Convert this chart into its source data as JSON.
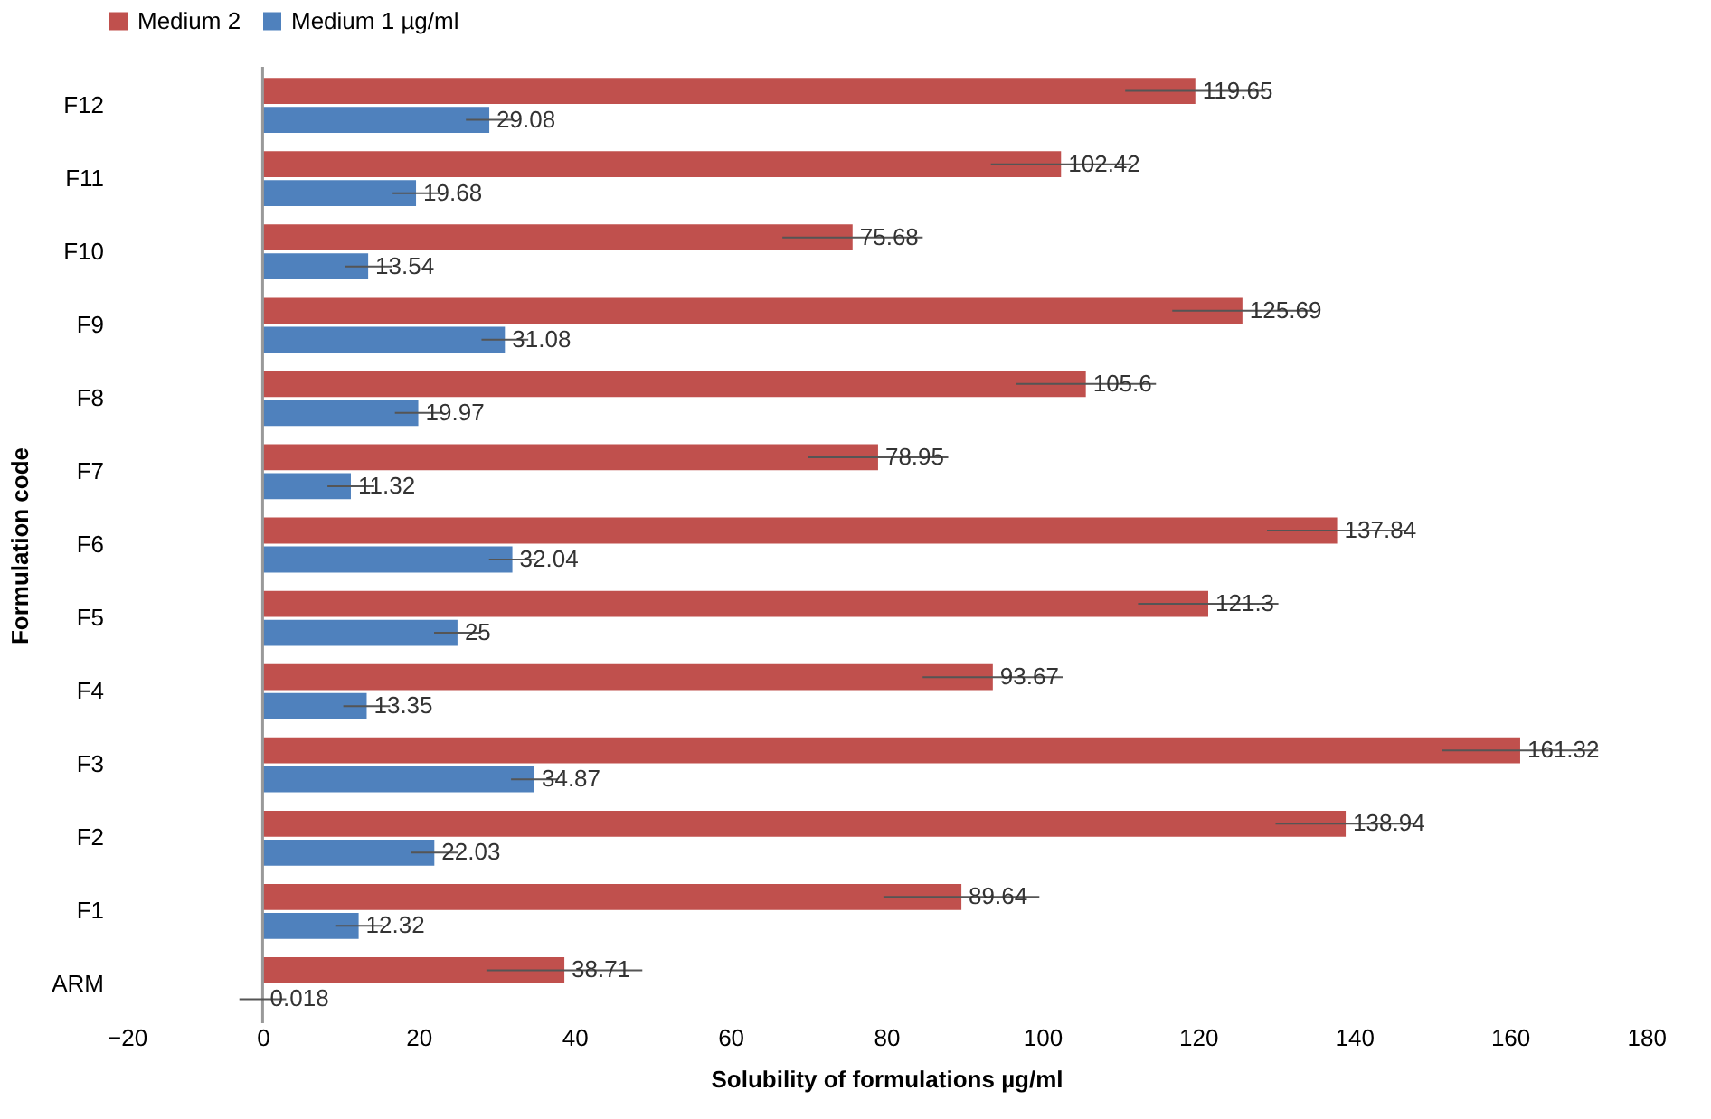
{
  "chart_data": {
    "type": "bar",
    "orientation": "horizontal",
    "xlabel": "Solubility of formulations µg/ml",
    "ylabel": "Formulation code",
    "categories": [
      "F12",
      "F11",
      "F10",
      "F9",
      "F8",
      "F7",
      "F6",
      "F5",
      "F4",
      "F3",
      "F2",
      "F1",
      "ARM"
    ],
    "series": [
      {
        "name": "Medium 2",
        "color": "#c0504d",
        "values": [
          119.65,
          102.42,
          75.68,
          125.69,
          105.6,
          78.95,
          137.84,
          121.3,
          93.67,
          161.32,
          138.94,
          89.64,
          38.71
        ],
        "errors": [
          9,
          9,
          9,
          9,
          9,
          9,
          9,
          9,
          9,
          10,
          9,
          10,
          10
        ]
      },
      {
        "name": "Medium 1 µg/ml",
        "color": "#4f81bd",
        "values": [
          29.08,
          19.68,
          13.54,
          31.08,
          19.97,
          11.32,
          32.04,
          25,
          13.35,
          34.87,
          22.03,
          12.32,
          0.018
        ],
        "errors": [
          3,
          3,
          3,
          3,
          3,
          3,
          3,
          3,
          3,
          3,
          3,
          3,
          3
        ]
      }
    ],
    "xlim": [
      -20,
      180
    ],
    "xticks": [
      -20,
      0,
      20,
      40,
      60,
      80,
      100,
      120,
      140,
      160,
      180
    ],
    "data_labels": true,
    "ref_lines": [
      {
        "axis": "x",
        "value": 0,
        "color": "#999999"
      }
    ],
    "legend": "top",
    "grid": false
  }
}
